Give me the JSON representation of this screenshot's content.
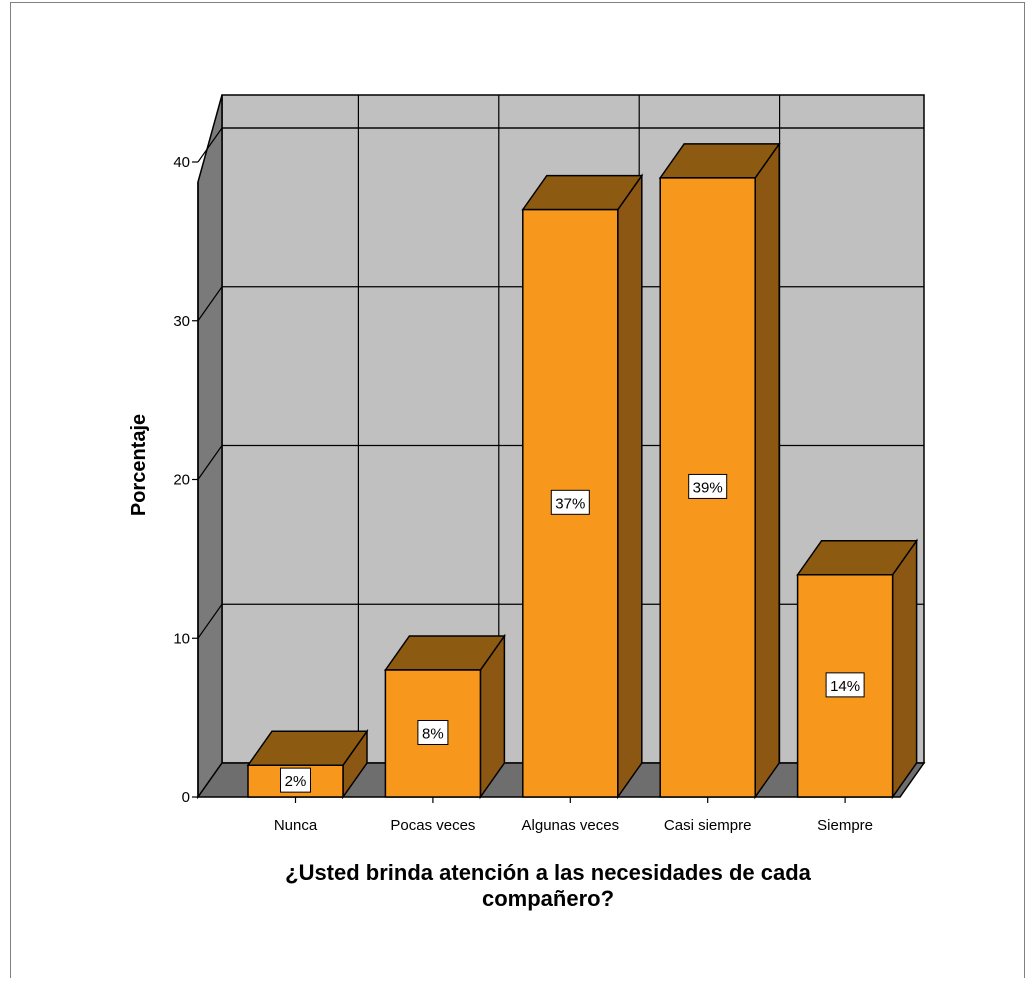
{
  "chart_data": {
    "type": "bar",
    "categories": [
      "Nunca",
      "Pocas veces",
      "Algunas veces",
      "Casi siempre",
      "Siempre"
    ],
    "values": [
      2,
      8,
      37,
      39,
      14
    ],
    "data_labels": [
      "2%",
      "8%",
      "37%",
      "39%",
      "14%"
    ],
    "ylabel": "Porcentaje",
    "xlabel_lines": [
      "¿Usted brinda atención a las necesidades de cada",
      "compañero?"
    ],
    "ylim": [
      0,
      40
    ],
    "yticks": [
      "0",
      "10",
      "20",
      "30",
      "40"
    ],
    "grid": true,
    "style": "3d",
    "colors": {
      "bar_front": "#F7981D",
      "bar_top": "#8C5A11",
      "bar_side": "#8C5713",
      "wall": "#C0C0C0",
      "floor": "#6E6E6E",
      "left_wall": "#7A7A7A"
    }
  }
}
